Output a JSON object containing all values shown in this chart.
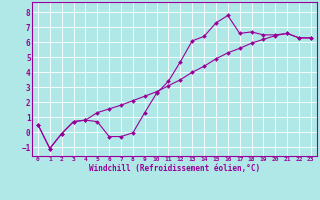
{
  "xlabel": "Windchill (Refroidissement éolien,°C)",
  "bg_color": "#b0e8e8",
  "grid_color": "#ffffff",
  "line_color": "#990099",
  "spine_color": "#990099",
  "xlim": [
    -0.5,
    23.5
  ],
  "ylim": [
    -1.6,
    8.7
  ],
  "xticks": [
    0,
    1,
    2,
    3,
    4,
    5,
    6,
    7,
    8,
    9,
    10,
    11,
    12,
    13,
    14,
    15,
    16,
    17,
    18,
    19,
    20,
    21,
    22,
    23
  ],
  "yticks": [
    -1,
    0,
    1,
    2,
    3,
    4,
    5,
    6,
    7,
    8
  ],
  "curve1_x": [
    0,
    1,
    2,
    3,
    4,
    5,
    6,
    7,
    8,
    9,
    10,
    11,
    12,
    13,
    14,
    15,
    16,
    17,
    18,
    19,
    20,
    21,
    22,
    23
  ],
  "curve1_y": [
    0.5,
    -1.1,
    -0.1,
    0.7,
    0.8,
    0.7,
    -0.3,
    -0.3,
    -0.05,
    1.3,
    2.6,
    3.4,
    4.7,
    6.1,
    6.4,
    7.3,
    7.8,
    6.6,
    6.7,
    6.5,
    6.5,
    6.6,
    6.3,
    6.3
  ],
  "curve2_x": [
    0,
    1,
    2,
    3,
    4,
    5,
    6,
    7,
    8,
    9,
    10,
    11,
    12,
    13,
    14,
    15,
    16,
    17,
    18,
    19,
    20,
    21,
    22,
    23
  ],
  "curve2_y": [
    0.5,
    -1.1,
    -0.1,
    0.7,
    0.8,
    1.3,
    1.55,
    1.8,
    2.1,
    2.4,
    2.7,
    3.1,
    3.5,
    4.0,
    4.4,
    4.9,
    5.3,
    5.6,
    5.95,
    6.2,
    6.45,
    6.6,
    6.3,
    6.3
  ]
}
